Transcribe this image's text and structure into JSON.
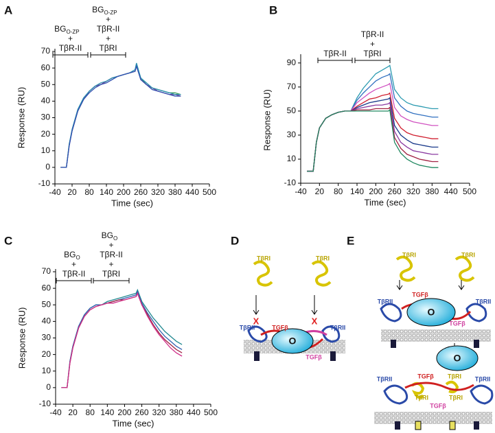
{
  "panels": [
    "A",
    "B",
    "C",
    "D",
    "E"
  ],
  "chart_data": [
    {
      "type": "line",
      "xlabel": "Time (sec)",
      "ylabel": "Response (RU)",
      "x": [
        -20,
        0,
        10,
        20,
        40,
        60,
        80,
        100,
        120,
        140,
        160,
        180,
        200,
        220,
        240,
        245,
        260,
        280,
        300,
        320,
        340,
        360,
        380,
        400
      ],
      "xlim": [
        -40,
        500
      ],
      "xticks": [
        -40,
        20,
        80,
        140,
        200,
        260,
        320,
        380,
        440,
        500
      ],
      "ylim": [
        -10,
        70
      ],
      "yticks": [
        -10,
        0,
        10,
        20,
        30,
        40,
        50,
        60,
        70
      ],
      "annotations": [
        {
          "base": "BG",
          "sub": "O-ZP",
          "lines": [
            "+",
            "TβR-II"
          ]
        },
        {
          "base": "BG",
          "sub": "O-ZP",
          "lines": [
            "+",
            "TβR-II",
            "+",
            "TβRI"
          ]
        }
      ],
      "series": [
        {
          "color": "#3a9a5a",
          "values": [
            0,
            0,
            14,
            22,
            34,
            41,
            46,
            49,
            50,
            52,
            54,
            55,
            56,
            57,
            58,
            62,
            54,
            50,
            48,
            47,
            46,
            45,
            45,
            44
          ]
        },
        {
          "color": "#7a3a9a",
          "values": [
            0,
            0,
            13,
            22,
            34,
            41,
            46,
            49,
            50,
            52,
            54,
            55,
            56,
            57,
            58,
            62,
            53,
            50,
            48,
            46,
            45,
            44,
            44,
            43
          ]
        },
        {
          "color": "#2a8fb0",
          "values": [
            0,
            0,
            14,
            23,
            35,
            42,
            46,
            49,
            51,
            52,
            54,
            55,
            56,
            57,
            59,
            63,
            54,
            51,
            48,
            47,
            46,
            45,
            44,
            44
          ]
        },
        {
          "color": "#3050b0",
          "values": [
            0,
            0,
            13,
            22,
            34,
            41,
            45,
            48,
            50,
            51,
            53,
            55,
            56,
            57,
            58,
            61,
            53,
            50,
            47,
            46,
            45,
            44,
            43,
            43
          ]
        }
      ]
    },
    {
      "type": "line",
      "xlabel": "Time (sec)",
      "ylabel": "Response (RU)",
      "x": [
        -20,
        0,
        10,
        20,
        40,
        60,
        80,
        100,
        120,
        140,
        160,
        180,
        200,
        220,
        240,
        245,
        260,
        280,
        300,
        320,
        340,
        360,
        380,
        400
      ],
      "xlim": [
        -40,
        500
      ],
      "xticks": [
        -40,
        20,
        80,
        140,
        200,
        260,
        320,
        380,
        440,
        500
      ],
      "ylim": [
        -10,
        95
      ],
      "yticks": [
        -10,
        10,
        30,
        50,
        70,
        90
      ],
      "annotations": [
        {
          "lines": [
            "TβR-II"
          ]
        },
        {
          "lines": [
            "TβR-II",
            "+",
            "TβRI"
          ]
        }
      ],
      "series": [
        {
          "color": "#2a9ab0",
          "values": [
            0,
            0,
            24,
            36,
            44,
            47,
            49,
            50,
            50,
            61,
            69,
            75,
            81,
            84,
            87,
            88,
            68,
            61,
            57,
            55,
            54,
            53,
            52,
            52
          ]
        },
        {
          "color": "#3070c0",
          "values": [
            0,
            0,
            24,
            36,
            44,
            47,
            49,
            50,
            50,
            59,
            65,
            70,
            75,
            78,
            80,
            81,
            61,
            54,
            50,
            48,
            47,
            46,
            45,
            45
          ]
        },
        {
          "color": "#d050c0",
          "values": [
            0,
            0,
            24,
            36,
            44,
            47,
            49,
            50,
            50,
            57,
            61,
            65,
            68,
            70,
            72,
            73,
            53,
            46,
            43,
            41,
            40,
            39,
            38,
            38
          ]
        },
        {
          "color": "#d02030",
          "values": [
            0,
            0,
            24,
            36,
            44,
            47,
            49,
            50,
            50,
            54,
            57,
            60,
            61,
            63,
            64,
            65,
            44,
            36,
            32,
            30,
            29,
            28,
            27,
            27
          ]
        },
        {
          "color": "#1a3a8a",
          "values": [
            0,
            0,
            24,
            36,
            44,
            47,
            49,
            50,
            50,
            53,
            55,
            57,
            58,
            59,
            60,
            61,
            38,
            30,
            26,
            23,
            22,
            21,
            20,
            20
          ]
        },
        {
          "color": "#8a3aa0",
          "values": [
            0,
            0,
            24,
            36,
            44,
            47,
            49,
            50,
            50,
            52,
            53,
            54,
            55,
            55,
            56,
            57,
            33,
            24,
            20,
            17,
            16,
            15,
            14,
            14
          ]
        },
        {
          "color": "#a02040",
          "values": [
            0,
            0,
            24,
            36,
            44,
            47,
            49,
            50,
            50,
            51,
            51,
            51,
            52,
            52,
            52,
            53,
            28,
            19,
            14,
            12,
            10,
            9,
            8,
            8
          ]
        },
        {
          "color": "#208860",
          "values": [
            0,
            0,
            24,
            36,
            44,
            47,
            49,
            50,
            50,
            50,
            50,
            50,
            50,
            50,
            50,
            51,
            24,
            15,
            10,
            7,
            5,
            4,
            3,
            3
          ]
        }
      ]
    },
    {
      "type": "line",
      "xlabel": "Time (sec)",
      "ylabel": "Response (RU)",
      "x": [
        -20,
        0,
        10,
        20,
        40,
        60,
        80,
        100,
        120,
        140,
        160,
        180,
        200,
        220,
        240,
        245,
        260,
        280,
        300,
        320,
        340,
        360,
        380,
        400
      ],
      "xlim": [
        -40,
        500
      ],
      "xticks": [
        -40,
        20,
        80,
        140,
        200,
        260,
        320,
        380,
        440,
        500
      ],
      "ylim": [
        -10,
        70
      ],
      "yticks": [
        -10,
        0,
        10,
        20,
        30,
        40,
        50,
        60,
        70
      ],
      "annotations": [
        {
          "base": "BG",
          "sub": "O",
          "lines": [
            "+",
            "TβR-II"
          ]
        },
        {
          "base": "BG",
          "sub": "O",
          "lines": [
            "+",
            "TβR-II",
            "+",
            "TβRI"
          ]
        }
      ],
      "series": [
        {
          "color": "#208890",
          "values": [
            0,
            0,
            16,
            25,
            37,
            44,
            48,
            50,
            50,
            52,
            53,
            54,
            55,
            56,
            57,
            59,
            52,
            47,
            42,
            38,
            34,
            31,
            28,
            26
          ]
        },
        {
          "color": "#3060b0",
          "values": [
            0,
            0,
            16,
            25,
            37,
            44,
            48,
            50,
            50,
            51,
            52,
            53,
            54,
            55,
            56,
            58,
            51,
            45,
            40,
            35,
            31,
            28,
            25,
            23
          ]
        },
        {
          "color": "#a02040",
          "values": [
            0,
            0,
            15,
            24,
            36,
            43,
            47,
            49,
            50,
            51,
            52,
            53,
            53,
            54,
            55,
            57,
            50,
            44,
            38,
            33,
            29,
            26,
            23,
            21
          ]
        },
        {
          "color": "#d0308a",
          "values": [
            0,
            0,
            15,
            24,
            36,
            43,
            47,
            49,
            50,
            51,
            51,
            52,
            53,
            54,
            55,
            57,
            50,
            43,
            37,
            32,
            28,
            24,
            21,
            19
          ]
        }
      ]
    }
  ],
  "diagram_D": {
    "labels": [
      "TβRI",
      "TβRI",
      "X",
      "X",
      "TGFβ",
      "TβRII",
      "TβRII",
      "O",
      "TGFβ"
    ]
  },
  "diagram_E": {
    "labels": [
      "TβRI",
      "TβRI",
      "TGFβ",
      "TβRII",
      "TβRII",
      "O",
      "TGFβ",
      "O",
      "TβRII",
      "TGFβ",
      "TβRI",
      "TβRII",
      "TβRI",
      "TGFβ",
      "TβRI"
    ]
  }
}
